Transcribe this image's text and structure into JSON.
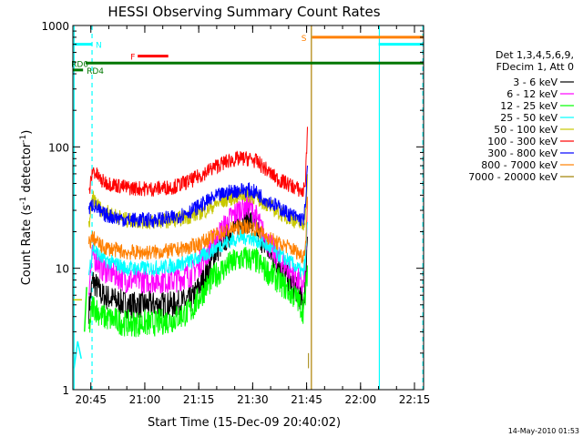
{
  "chart_data": {
    "type": "line",
    "title": "HESSI Observing Summary Count Rates",
    "xlabel": "Start Time (15-Dec-09 20:40:02)",
    "ylabel_main": "Count Rate (s",
    "ylabel_sup1": "-1",
    "ylabel_mid": " detector",
    "ylabel_sup2": "-1",
    "ylabel_end": ")",
    "footer": "14-May-2010 01:53",
    "x_axis": {
      "unit": "minutes since 20:40:02",
      "range": [
        -0.03,
        97.5
      ],
      "ticks": [
        {
          "label": "20:45",
          "value": 4.97
        },
        {
          "label": "21:00",
          "value": 19.97
        },
        {
          "label": "21:15",
          "value": 34.97
        },
        {
          "label": "21:30",
          "value": 49.97
        },
        {
          "label": "21:45",
          "value": 64.97
        },
        {
          "label": "22:00",
          "value": 79.97
        },
        {
          "label": "22:15",
          "value": 94.97
        }
      ]
    },
    "y_axis": {
      "scale": "log",
      "range": [
        1,
        1000
      ],
      "ticks": [
        {
          "label": "1",
          "value": 1
        },
        {
          "label": "10",
          "value": 10
        },
        {
          "label": "100",
          "value": 100
        },
        {
          "label": "1000",
          "value": 1000
        }
      ]
    },
    "legend": {
      "position": "right",
      "header1": "Det 1,3,4,5,6,9,",
      "header2": "FDecim 1, Att 0"
    },
    "series": [
      {
        "name": "3 - 6 keV",
        "color": "#000000",
        "x": [
          4.4,
          5.5,
          8,
          15,
          22,
          28,
          33,
          37,
          40,
          44,
          47,
          49,
          51,
          53,
          55,
          57,
          60,
          62.5,
          64,
          64.7,
          65.2
        ],
        "y": [
          4.5,
          8,
          6,
          5,
          5,
          5,
          5.5,
          9,
          14,
          20,
          24,
          25,
          21,
          16,
          13,
          11,
          8,
          6.5,
          5,
          8,
          20
        ]
      },
      {
        "name": "6 - 12 keV",
        "color": "#ff00ff",
        "x": [
          4.4,
          5.5,
          8,
          15,
          22,
          28,
          33,
          37,
          40,
          44,
          47,
          49,
          51,
          53,
          55,
          57,
          60,
          62.5,
          64,
          64.7,
          65.2
        ],
        "y": [
          7,
          13,
          10,
          8,
          8,
          8,
          9,
          13,
          18,
          26,
          32,
          33,
          26,
          19,
          15,
          12,
          10,
          8,
          7,
          11,
          28
        ]
      },
      {
        "name": "12 - 25 keV",
        "color": "#00ff00",
        "x": [
          4.4,
          5.5,
          8,
          15,
          22,
          28,
          33,
          37,
          40,
          44,
          47,
          49,
          51,
          53,
          55,
          57,
          60,
          62.5,
          64,
          64.7,
          65.2
        ],
        "y": [
          3,
          5,
          4,
          3.5,
          3.5,
          3.8,
          4.5,
          7,
          9,
          11,
          12,
          12,
          11.5,
          10,
          9,
          8,
          6.5,
          5.5,
          4.5,
          6,
          10
        ]
      },
      {
        "name": "25 - 50 keV",
        "color": "#00ffff",
        "x": [
          4.4,
          5.5,
          8,
          15,
          22,
          28,
          33,
          37,
          40,
          44,
          47,
          49,
          51,
          53,
          55,
          57,
          60,
          62.5,
          64,
          64.7,
          65.2
        ],
        "y": [
          9,
          15,
          12,
          10,
          10,
          10.5,
          11.5,
          13,
          15,
          17,
          18,
          18,
          17,
          16,
          14.5,
          13,
          11.5,
          10,
          9,
          12,
          25
        ]
      },
      {
        "name": "50 - 100 keV",
        "color": "#c8c800",
        "x": [
          4.4,
          5.5,
          8,
          15,
          22,
          28,
          33,
          37,
          40,
          44,
          47,
          49,
          51,
          53,
          55,
          57,
          60,
          62.5,
          64,
          64.7,
          65.2
        ],
        "y": [
          22,
          38,
          30,
          25,
          24,
          25,
          27,
          30,
          34,
          38,
          40,
          40,
          38,
          35,
          32,
          29,
          26,
          24,
          22,
          28,
          55
        ]
      },
      {
        "name": "100 - 300 keV",
        "color": "#ff0000",
        "x": [
          4.4,
          5.5,
          8,
          15,
          22,
          28,
          33,
          37,
          40,
          44,
          47,
          49,
          51,
          53,
          55,
          57,
          60,
          62.5,
          64,
          64.7,
          65.2
        ],
        "y": [
          40,
          65,
          52,
          46,
          45,
          47,
          53,
          62,
          70,
          78,
          80,
          80,
          76,
          68,
          60,
          54,
          49,
          45,
          42,
          55,
          150
        ]
      },
      {
        "name": "300 - 800 keV",
        "color": "#0000ff",
        "x": [
          4.4,
          5.5,
          8,
          15,
          22,
          28,
          33,
          37,
          40,
          44,
          47,
          49,
          51,
          53,
          55,
          57,
          60,
          62.5,
          64,
          64.7,
          65.2
        ],
        "y": [
          30,
          34,
          28,
          25,
          25,
          26,
          30,
          35,
          39,
          43,
          44,
          44,
          42,
          38,
          35,
          32,
          28,
          26,
          25,
          32,
          70
        ]
      },
      {
        "name": "800 - 7000 keV",
        "color": "#ff8000",
        "x": [
          4.4,
          5.5,
          8,
          15,
          22,
          28,
          33,
          37,
          40,
          44,
          47,
          49,
          51,
          53,
          55,
          57,
          60,
          62.5,
          64,
          64.7,
          65.2
        ],
        "y": [
          16,
          18,
          15,
          13.5,
          13.5,
          14,
          15,
          17,
          19,
          21,
          22,
          22,
          21,
          19,
          17.5,
          16,
          15,
          13.5,
          12.5,
          16,
          35
        ]
      },
      {
        "name": "7000 - 20000 keV",
        "color": "#a08000",
        "x": [
          65.5,
          65.5
        ],
        "y": [
          1.5,
          2
        ]
      }
    ],
    "early_segments": [
      {
        "color": "#c8c800",
        "x": [
          0,
          2.5
        ],
        "y": [
          5.5,
          5.5
        ]
      },
      {
        "color": "#00ffff",
        "x": [
          0.3,
          1.3,
          2.3
        ],
        "y": [
          1.5,
          2.5,
          1.8
        ]
      },
      {
        "color": "#00ff00",
        "x": [
          3.2,
          3.8
        ],
        "y": [
          3,
          7
        ]
      }
    ],
    "status_bars": [
      {
        "label": "N",
        "color": "#00ffff",
        "x": [
          0,
          5.3
        ],
        "y": 700,
        "label_x": 6.3
      },
      {
        "label": "F",
        "color": "#ff0000",
        "x": [
          18,
          26.5
        ],
        "y": 560,
        "label_x": 16
      },
      {
        "label": "RD0",
        "color": "#007700",
        "x": [
          3.5,
          97.5
        ],
        "y": 490,
        "label_x": -0.5
      },
      {
        "label": "RD4",
        "color": "#007700",
        "x": [
          0,
          2.8
        ],
        "y": 430,
        "label_x": 3.8
      },
      {
        "label": "S",
        "color": "#ff8000",
        "x": [
          66.5,
          97.5
        ],
        "y": 800,
        "label_x": 63.5
      },
      {
        "label": "",
        "color": "#00ffff",
        "x": [
          85,
          97.5
        ],
        "y": 700,
        "label_x": 0
      }
    ],
    "vertical_lines": [
      {
        "color": "#00ffff",
        "x": 0.3,
        "style": "solid"
      },
      {
        "color": "#00ffff",
        "x": 5.3,
        "style": "dashed"
      },
      {
        "color": "#b08000",
        "x": 66.3,
        "style": "solid"
      },
      {
        "color": "#00ffff",
        "x": 85.2,
        "style": "solid"
      },
      {
        "color": "#00ffff",
        "x": 97.3,
        "style": "dashed"
      }
    ]
  }
}
